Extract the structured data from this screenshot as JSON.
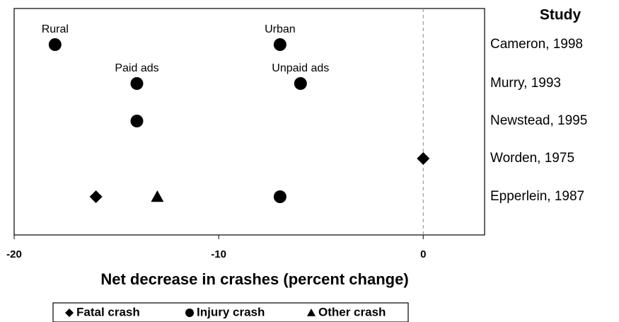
{
  "chart_data": {
    "type": "scatter",
    "y_title": "Study",
    "x_label": "Net decrease in crashes (percent change)",
    "categories": [
      "Cameron, 1998",
      "Murry, 1993",
      "Newstead, 1995",
      "Worden, 1975",
      "Epperlein, 1987"
    ],
    "xlim": [
      -20,
      3
    ],
    "xticks": [
      -20,
      -10,
      0
    ],
    "reference_line": 0,
    "legend": "bottom",
    "series": [
      {
        "name": "Fatal crash",
        "marker": "diamond",
        "color": "#000000",
        "values": [
          0,
          -16
        ],
        "y": [
          "Worden, 1975",
          "Epperlein, 1987"
        ]
      },
      {
        "name": "Injury crash",
        "marker": "circle",
        "color": "#000000",
        "values": [
          -18,
          -7,
          -14,
          -6,
          -14,
          -7
        ],
        "y": [
          "Cameron, 1998",
          "Cameron, 1998",
          "Murry, 1993",
          "Murry, 1993",
          "Newstead, 1995",
          "Epperlein, 1987"
        ],
        "labels": [
          "Rural",
          "Urban",
          "Paid ads",
          "Unpaid ads",
          null,
          null
        ]
      },
      {
        "name": "Other crash",
        "marker": "triangle",
        "color": "#000000",
        "values": [
          -13
        ],
        "y": [
          "Epperlein, 1987"
        ]
      }
    ]
  }
}
